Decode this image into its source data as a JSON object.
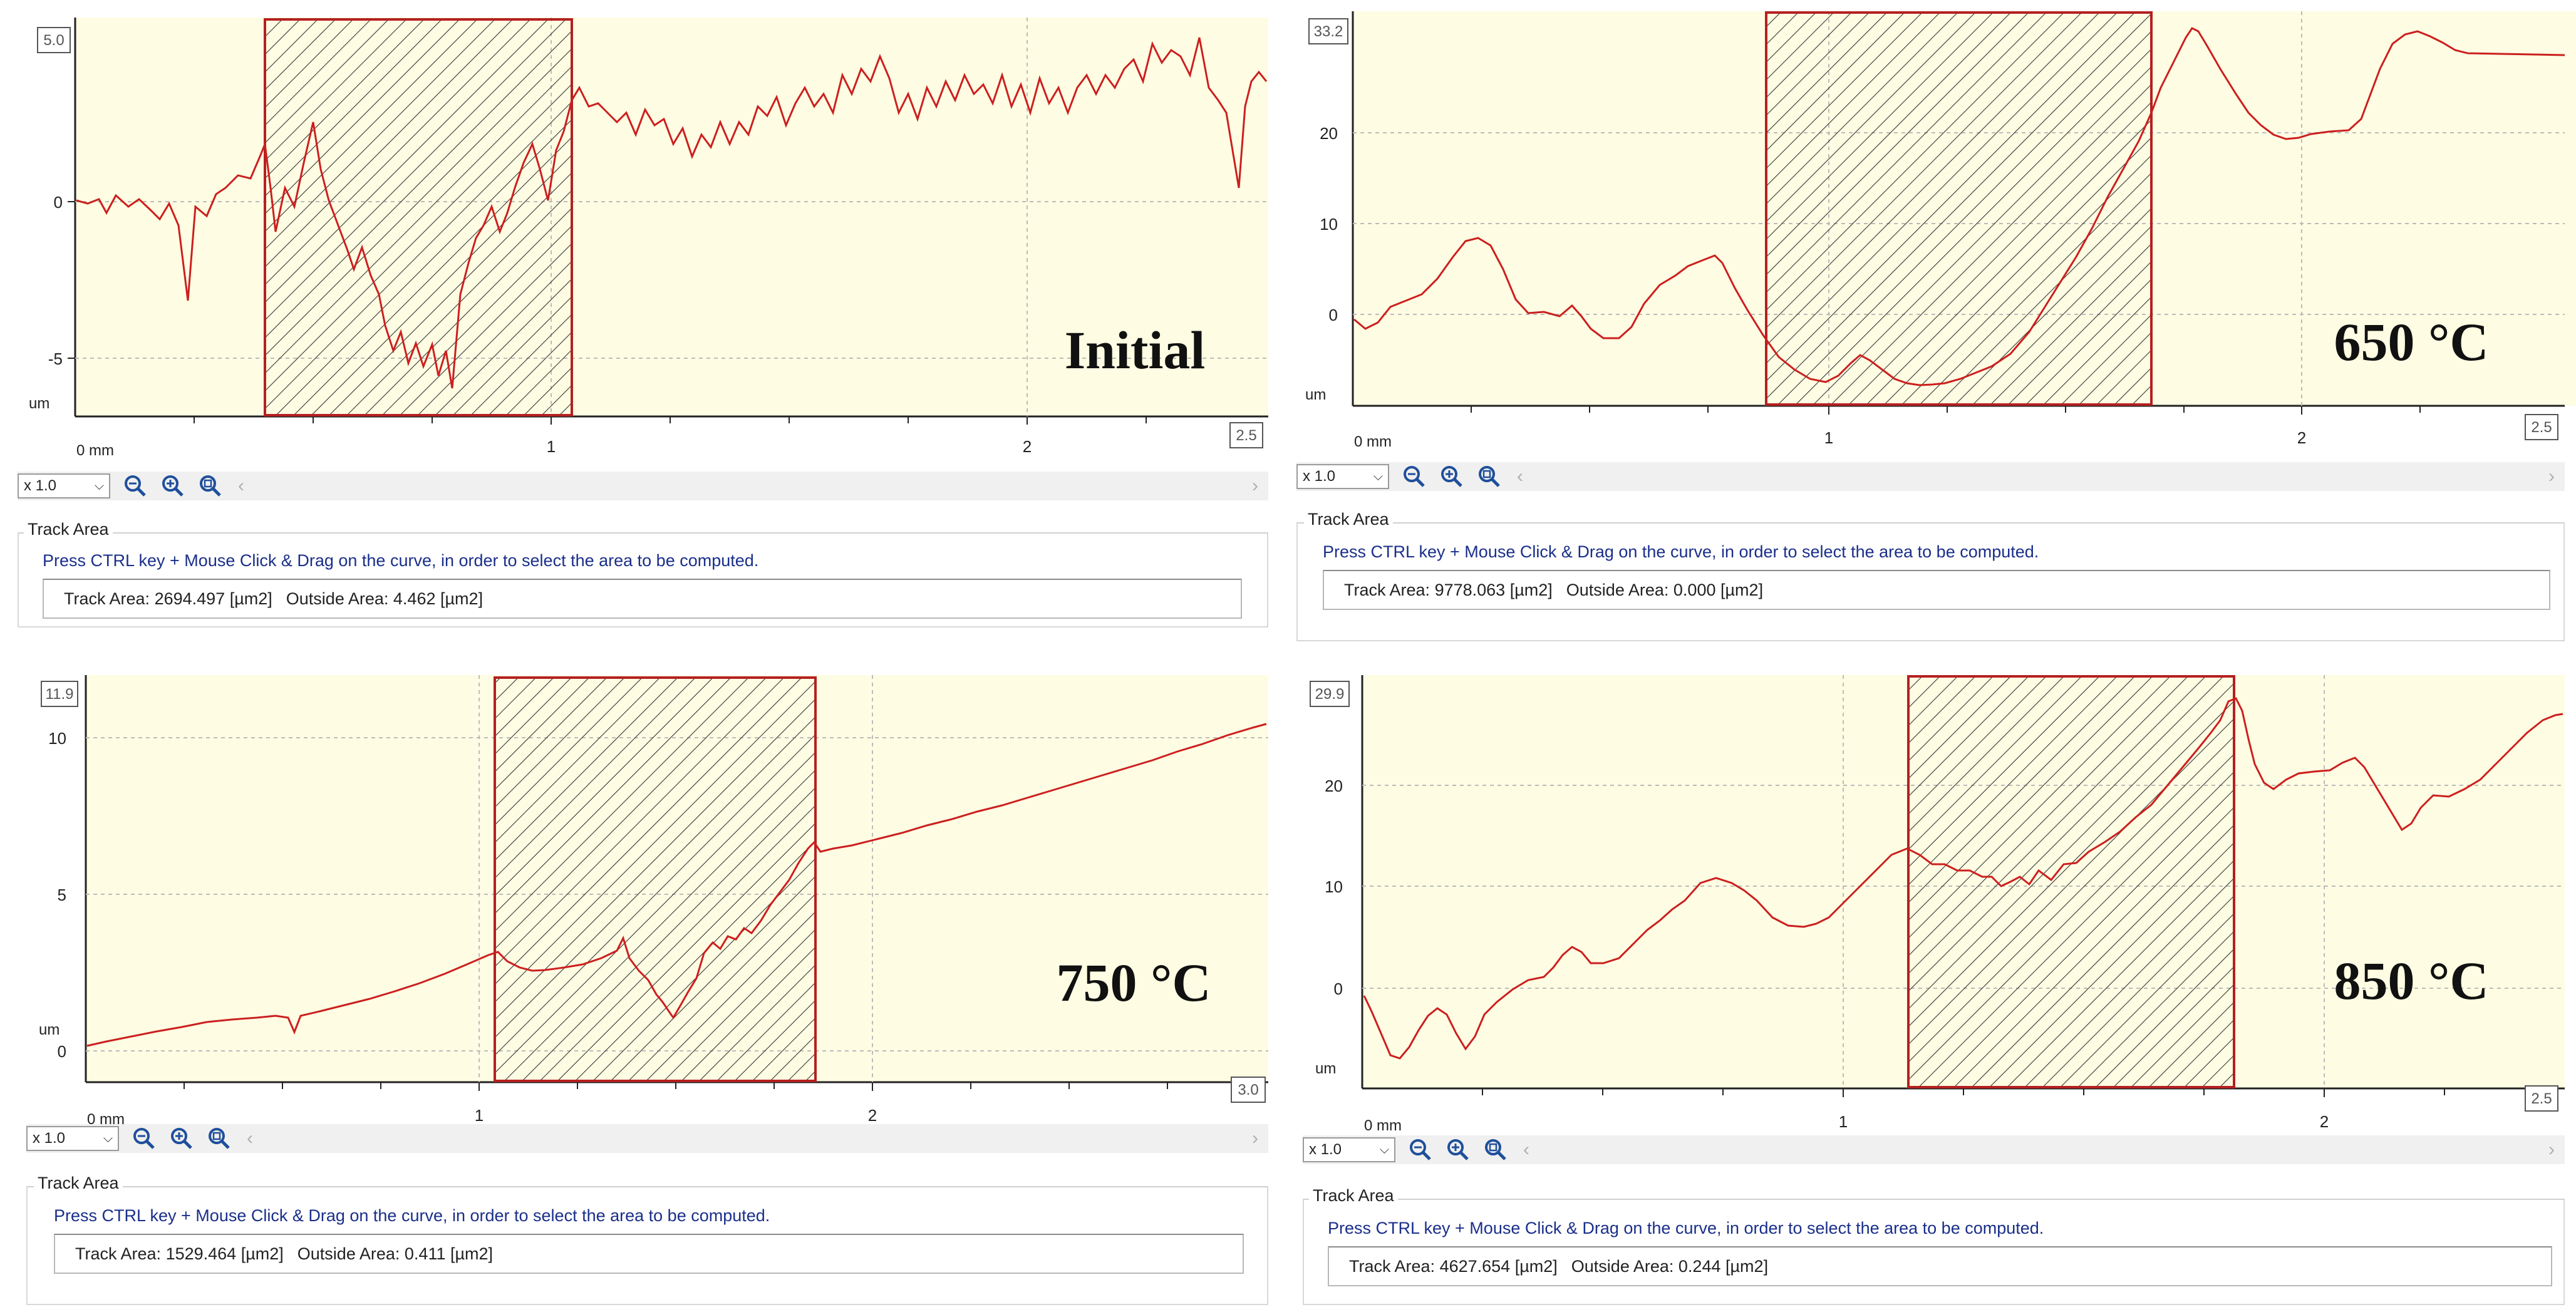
{
  "shared": {
    "zoom_value": "x 1.0",
    "group_title": "Track Area",
    "instruction": "Press CTRL key + Mouse Click & Drag on the curve, in order to select the area to be computed.",
    "track_area_label": "Track Area:",
    "outside_area_label": "Outside Area:",
    "unit_label": "[µm2]",
    "y_unit": "um",
    "x_origin_label": "0 mm",
    "icons": [
      "zoom-out-icon",
      "zoom-in-icon",
      "zoom-fit-icon"
    ]
  },
  "panels": [
    {
      "id": "initial",
      "label": "Initial",
      "ymax_badge": "5.0",
      "xmax_badge": "2.5",
      "yticks": [
        "0",
        "-5"
      ],
      "xticks": [
        "1",
        "2"
      ],
      "track_area": "2694.497",
      "outside_area": "4.462",
      "colors": {
        "curve": "#cc1f1f",
        "selection": "#b52020",
        "plot_bg": "#fefde3"
      }
    },
    {
      "id": "c650",
      "label": "650 °C",
      "ymax_badge": "33.2",
      "xmax_badge": "2.5",
      "yticks": [
        "20",
        "10",
        "0"
      ],
      "xticks": [
        "1",
        "2"
      ],
      "track_area": "9778.063",
      "outside_area": "0.000",
      "colors": {
        "curve": "#cc1f1f",
        "selection": "#b52020",
        "plot_bg": "#fefde3"
      }
    },
    {
      "id": "c750",
      "label": "750 °C",
      "ymax_badge": "11.9",
      "xmax_badge": "3.0",
      "yticks": [
        "10",
        "5",
        "0"
      ],
      "xticks": [
        "1",
        "2"
      ],
      "track_area": "1529.464",
      "outside_area": "0.411",
      "colors": {
        "curve": "#cc1f1f",
        "selection": "#b52020",
        "plot_bg": "#fefde3"
      }
    },
    {
      "id": "c850",
      "label": "850 °C",
      "ymax_badge": "29.9",
      "xmax_badge": "2.5",
      "yticks": [
        "20",
        "10",
        "0"
      ],
      "xticks": [
        "1",
        "2"
      ],
      "track_area": "4627.654",
      "outside_area": "0.244",
      "colors": {
        "curve": "#cc1f1f",
        "selection": "#b52020",
        "plot_bg": "#fefde3"
      }
    }
  ]
}
